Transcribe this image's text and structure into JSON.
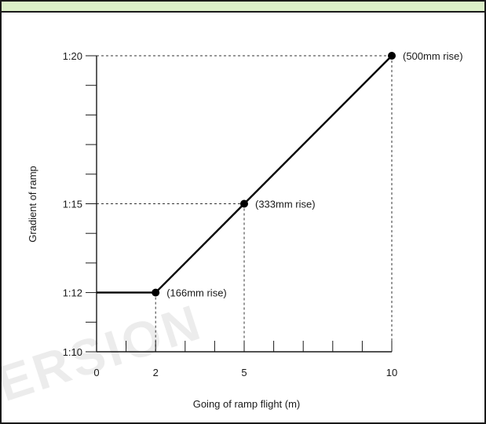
{
  "chart_data": {
    "type": "line",
    "title": "",
    "xlabel": "Going of ramp flight (m)",
    "ylabel": "Gradient of ramp",
    "xlim": [
      0,
      10
    ],
    "x_ticks": [
      0,
      1,
      2,
      3,
      4,
      5,
      6,
      7,
      8,
      9,
      10
    ],
    "x_tick_labels": [
      {
        "value": 0,
        "label": "0"
      },
      {
        "value": 2,
        "label": "2"
      },
      {
        "value": 5,
        "label": "5"
      },
      {
        "value": 10,
        "label": "10"
      }
    ],
    "y_tick_labels": [
      {
        "value": 10,
        "label": "1:10"
      },
      {
        "value": 12,
        "label": "1:12"
      },
      {
        "value": 15,
        "label": "1:15"
      },
      {
        "value": 20,
        "label": "1:20"
      }
    ],
    "y_minor_ticks": [
      11,
      13,
      14,
      16,
      17,
      18,
      19
    ],
    "ylim": [
      10,
      20
    ],
    "series": [
      {
        "x": [
          0,
          2,
          5,
          10
        ],
        "y": [
          12,
          12,
          15,
          20
        ]
      }
    ],
    "markers": [
      {
        "x": 2,
        "y": 12,
        "label": "(166mm rise)"
      },
      {
        "x": 5,
        "y": 15,
        "label": "(333mm rise)"
      },
      {
        "x": 10,
        "y": 20,
        "label": "(500mm rise)"
      }
    ],
    "grid": false,
    "colors": {
      "line": "#000000",
      "header": "#dcefc8"
    }
  },
  "watermark": "ERSION"
}
